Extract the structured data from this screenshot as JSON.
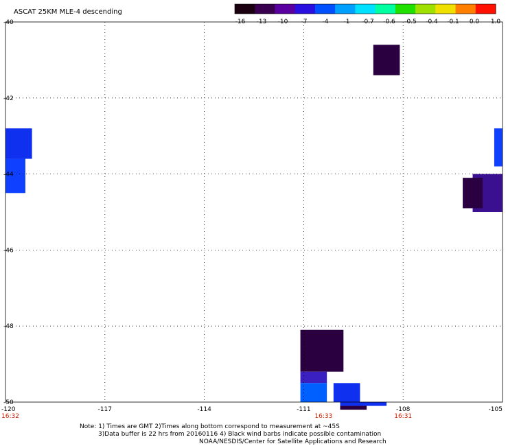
{
  "title": "ASCAT 25KM MLE-4 descending",
  "colorbar": {
    "labels": [
      "-16",
      "-13",
      "-10",
      "-7",
      "-4",
      "-1",
      "-0.7",
      "-0.6",
      "-0.5",
      "-0.4",
      "-0.1",
      "0.0",
      "1.0"
    ],
    "colors": [
      "#1a0010",
      "#3a0050",
      "#5a00a0",
      "#2a10e0",
      "#0050ff",
      "#00a0ff",
      "#00e0ff",
      "#00ffa0",
      "#20e000",
      "#a0e000",
      "#f0e000",
      "#ff8000",
      "#ff1000"
    ]
  },
  "axes": {
    "lat_labels": [
      "-40",
      "-42",
      "-44",
      "-46",
      "-48",
      "-50"
    ],
    "lon_labels": [
      "-120",
      "-117",
      "-114",
      "-111",
      "-108",
      "-105"
    ],
    "lon_values": [
      -120,
      -117,
      -114,
      -111,
      -108,
      -105
    ],
    "lat_values": [
      -40,
      -42,
      -44,
      -46,
      -48,
      -50
    ],
    "lon_range": [
      -120,
      -105
    ],
    "lat_range": [
      -40,
      -50
    ]
  },
  "time_labels": [
    {
      "text": "16:32",
      "lon": -120
    },
    {
      "text": "16:33",
      "lon": -110.4
    },
    {
      "text": "16:31",
      "lon": -108
    }
  ],
  "notes": [
    "Note: 1) Times are GMT 2)Times along bottom correspond to measurement at ~45S",
    "3)Data buffer is 22 hrs from 20160116 4) Black wind barbs indicate possible contamination",
    "NOAA/NESDIS/Center for Satellite Applications and Research"
  ],
  "data_cells": [
    {
      "lon0": -108.9,
      "lon1": -108.1,
      "lat0": -40.6,
      "lat1": -41.4,
      "color": "#2a0040"
    },
    {
      "lon0": -120,
      "lon1": -119.2,
      "lat0": -42.8,
      "lat1": -43.6,
      "color": "#1030f0"
    },
    {
      "lon0": -120,
      "lon1": -119.4,
      "lat0": -43.6,
      "lat1": -44.5,
      "color": "#1040ff"
    },
    {
      "lon0": -105.9,
      "lon1": -105,
      "lat0": -44.0,
      "lat1": -45.0,
      "color": "#3a1090"
    },
    {
      "lon0": -106.2,
      "lon1": -105.6,
      "lat0": -44.1,
      "lat1": -44.9,
      "color": "#2a0040"
    },
    {
      "lon0": -105.25,
      "lon1": -105,
      "lat0": -42.8,
      "lat1": -43.8,
      "color": "#1040ff"
    },
    {
      "lon0": -111.1,
      "lon1": -109.8,
      "lat0": -48.1,
      "lat1": -49.2,
      "color": "#2a0040"
    },
    {
      "lon0": -111.1,
      "lon1": -110.3,
      "lat0": -49.2,
      "lat1": -49.5,
      "color": "#3a20c0"
    },
    {
      "lon0": -111.1,
      "lon1": -110.3,
      "lat0": -49.5,
      "lat1": -50.0,
      "color": "#0060ff"
    },
    {
      "lon0": -110.1,
      "lon1": -109.3,
      "lat0": -49.5,
      "lat1": -50.0,
      "color": "#1030f0"
    },
    {
      "lon0": -109.9,
      "lon1": -108.5,
      "lat0": -50.0,
      "lat1": -50.1,
      "color": "#1030f0"
    },
    {
      "lon0": -109.9,
      "lon1": -109.1,
      "lat0": -50.1,
      "lat1": -50.2,
      "color": "#2a0040"
    }
  ]
}
